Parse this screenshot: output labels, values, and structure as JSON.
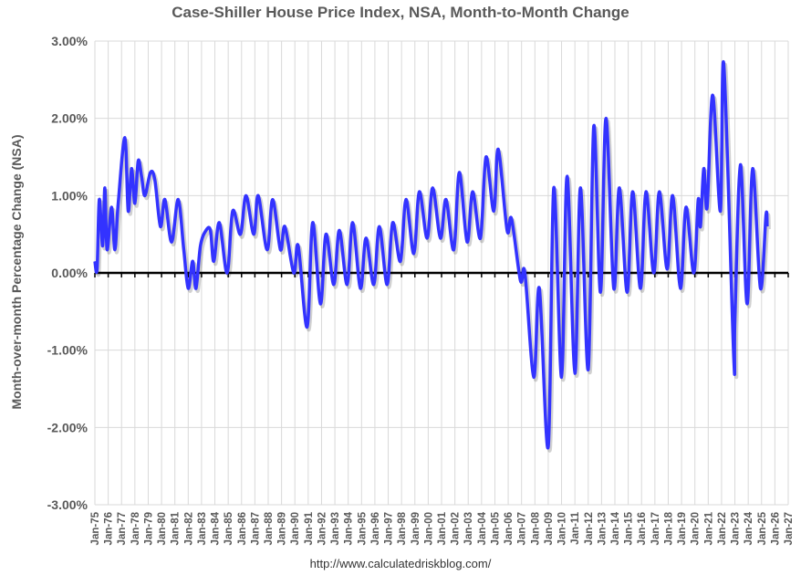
{
  "chart_data": {
    "type": "line",
    "title": "Case-Shiller House Price Index, NSA, Month-to-Month Change",
    "xlabel": "",
    "ylabel": "Month-over-month Percentage Change (NSA)",
    "source": "http://www.calculatedriskblog.com/",
    "ylim": [
      -3,
      3
    ],
    "xlim": [
      "1975-01",
      "2027-01"
    ],
    "y_ticks": [
      "3.00%",
      "2.00%",
      "1.00%",
      "0.00%",
      "-1.00%",
      "-2.00%",
      "-3.00%"
    ],
    "x_ticks": [
      "Jan-75",
      "Jan-76",
      "Jan-77",
      "Jan-78",
      "Jan-79",
      "Jan-80",
      "Jan-81",
      "Jan-82",
      "Jan-83",
      "Jan-84",
      "Jan-85",
      "Jan-86",
      "Jan-87",
      "Jan-88",
      "Jan-89",
      "Jan-90",
      "Jan-91",
      "Jan-92",
      "Jan-93",
      "Jan-94",
      "Jan-95",
      "Jan-96",
      "Jan-97",
      "Jan-98",
      "Jan-99",
      "Jan-00",
      "Jan-01",
      "Jan-02",
      "Jan-03",
      "Jan-04",
      "Jan-05",
      "Jan-06",
      "Jan-07",
      "Jan-08",
      "Jan-09",
      "Jan-10",
      "Jan-11",
      "Jan-12",
      "Jan-13",
      "Jan-14",
      "Jan-15",
      "Jan-16",
      "Jan-17",
      "Jan-18",
      "Jan-19",
      "Jan-20",
      "Jan-21",
      "Jan-22",
      "Jan-23",
      "Jan-24",
      "Jan-25",
      "Jan-26",
      "Jan-27"
    ],
    "grid": {
      "vertical": true,
      "horizontal": true
    },
    "line_color": "#3333ff",
    "zero_line_color": "#000000",
    "series": [
      {
        "x": [
          "1975-01",
          "1975-03",
          "1975-05",
          "1975-08",
          "1975-10",
          "1975-12",
          "1976-04",
          "1976-07",
          "1976-10",
          "1977-04",
          "1977-07",
          "1977-10",
          "1978-01",
          "1978-04",
          "1978-07",
          "1978-10",
          "1979-03",
          "1979-07",
          "1979-12",
          "1980-04",
          "1980-10",
          "1981-04",
          "1981-09",
          "1982-01",
          "1982-05",
          "1982-08",
          "1982-12",
          "1983-05",
          "1983-09",
          "1983-12",
          "1984-05",
          "1984-12",
          "1985-05",
          "1985-12",
          "1986-05",
          "1986-12",
          "1987-04",
          "1987-12",
          "1988-05",
          "1988-12",
          "1989-04",
          "1989-12",
          "1990-04",
          "1990-12",
          "1991-05",
          "1991-12",
          "1992-05",
          "1992-12",
          "1993-05",
          "1993-12",
          "1994-05",
          "1994-12",
          "1995-05",
          "1995-12",
          "1996-05",
          "1996-12",
          "1997-05",
          "1997-12",
          "1998-05",
          "1998-12",
          "1999-05",
          "1999-12",
          "2000-05",
          "2000-12",
          "2001-05",
          "2001-12",
          "2002-05",
          "2002-12",
          "2003-05",
          "2003-12",
          "2004-05",
          "2004-12",
          "2005-04",
          "2005-12",
          "2006-04",
          "2006-12",
          "2007-04",
          "2007-12",
          "2008-05",
          "2009-01",
          "2009-06",
          "2010-01",
          "2010-06",
          "2011-01",
          "2011-06",
          "2012-01",
          "2012-06",
          "2012-12",
          "2013-05",
          "2013-12",
          "2014-05",
          "2014-12",
          "2015-05",
          "2015-12",
          "2016-05",
          "2016-12",
          "2017-05",
          "2017-12",
          "2018-05",
          "2018-12",
          "2019-05",
          "2019-12",
          "2020-04",
          "2020-06",
          "2020-09",
          "2020-12",
          "2021-05",
          "2021-12",
          "2022-03",
          "2022-12",
          "2023-01",
          "2023-06",
          "2023-12",
          "2024-05",
          "2024-12",
          "2025-05",
          "2025-06"
        ],
        "values": [
          0.15,
          0.05,
          0.95,
          0.35,
          1.1,
          0.3,
          0.85,
          0.3,
          0.9,
          1.75,
          0.8,
          1.35,
          0.9,
          1.45,
          1.25,
          1.0,
          1.3,
          1.2,
          0.6,
          0.95,
          0.4,
          0.95,
          0.3,
          -0.2,
          0.15,
          -0.2,
          0.35,
          0.55,
          0.55,
          0.15,
          0.65,
          0.0,
          0.8,
          0.5,
          1.0,
          0.5,
          1.0,
          0.3,
          0.95,
          0.3,
          0.6,
          0.0,
          0.35,
          -0.7,
          0.65,
          -0.4,
          0.5,
          -0.15,
          0.55,
          -0.15,
          0.65,
          -0.2,
          0.45,
          -0.15,
          0.6,
          -0.15,
          0.65,
          0.15,
          0.95,
          0.25,
          1.05,
          0.45,
          1.1,
          0.45,
          0.95,
          0.3,
          1.3,
          0.4,
          1.05,
          0.45,
          1.5,
          0.8,
          1.6,
          0.55,
          0.7,
          -0.1,
          0.0,
          -1.35,
          -0.2,
          -2.25,
          1.1,
          -1.35,
          1.25,
          -1.3,
          1.1,
          -1.25,
          1.9,
          -0.25,
          2.0,
          -0.2,
          1.1,
          -0.25,
          1.05,
          -0.2,
          1.05,
          0.0,
          1.05,
          0.05,
          1.0,
          -0.2,
          0.85,
          0.0,
          0.95,
          0.6,
          1.35,
          0.85,
          2.3,
          0.8,
          2.7,
          -1.1,
          -0.6,
          1.4,
          -0.4,
          1.35,
          -0.2,
          0.75,
          0.6
        ]
      }
    ]
  }
}
